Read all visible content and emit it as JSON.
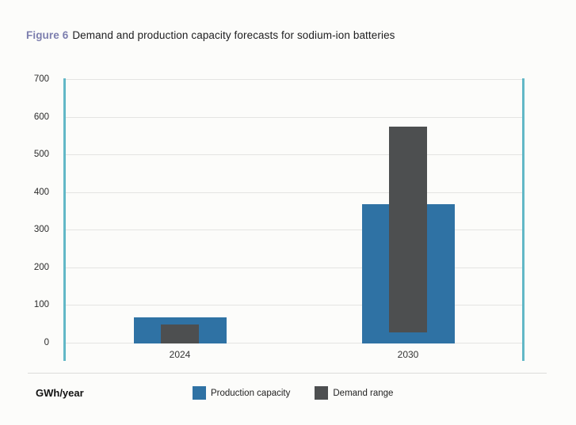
{
  "title": {
    "label": "Figure 6",
    "text": "Demand and production capacity forecasts for sodium-ion batteries"
  },
  "chart_data": {
    "type": "bar",
    "categories": [
      "2024",
      "2030"
    ],
    "series": [
      {
        "name": "Production capacity",
        "type": "bar",
        "base": 0,
        "values": [
          70,
          370
        ],
        "color": "#2F72A4"
      },
      {
        "name": "Demand range",
        "type": "range-bar",
        "ranges": [
          [
            0,
            50
          ],
          [
            30,
            575
          ]
        ],
        "color": "#4D4F50"
      }
    ],
    "ylabel": "GWh/year",
    "ylim": [
      0,
      700
    ],
    "yticks": [
      0,
      100,
      200,
      300,
      400,
      500,
      600,
      700
    ],
    "grid": true,
    "legend_position": "bottom",
    "axis_color": "#62B8C7",
    "gridline_color": "#E4E4E2",
    "background_color": "#FCFCFA"
  }
}
